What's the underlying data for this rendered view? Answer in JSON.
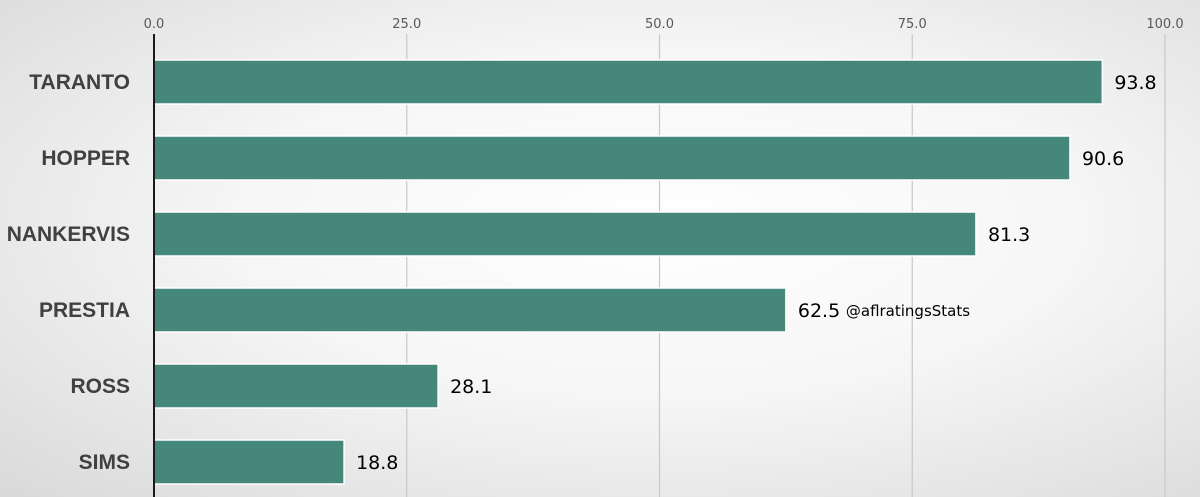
{
  "chart_data": {
    "type": "bar",
    "orientation": "horizontal",
    "categories": [
      "TARANTO",
      "HOPPER",
      "NANKERVIS",
      "PRESTIA",
      "ROSS",
      "SIMS"
    ],
    "values": [
      93.8,
      90.6,
      81.3,
      62.5,
      28.1,
      18.8
    ],
    "value_labels": [
      "93.8",
      "90.6",
      "81.3",
      "62.5",
      "28.1",
      "18.8"
    ],
    "xlim": [
      0,
      100
    ],
    "x_ticks": [
      0,
      25,
      50,
      75,
      100
    ],
    "x_tick_labels": [
      "0.0",
      "25.0",
      "50.0",
      "75.0",
      "100.0"
    ],
    "x_axis_position": "top",
    "grid": true,
    "bar_color": "#45877a",
    "annotation": {
      "text": "@aflratingsStats",
      "attached_to": "PRESTIA"
    }
  }
}
